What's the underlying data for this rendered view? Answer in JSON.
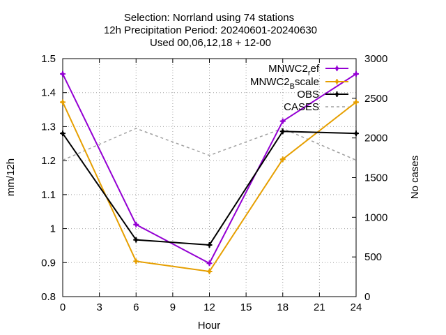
{
  "chart_data": {
    "type": "line",
    "title": [
      "Selection: Norrland using     74 stations",
      "12h Precipitation    Period: 20240601-20240630",
      "Used 00,06,12,18 + 12-00"
    ],
    "xlabel": "Hour",
    "ylabel": "mm/12h",
    "y2label": "No cases",
    "xlim": [
      0,
      24
    ],
    "ylim": [
      0.8,
      1.5
    ],
    "y2lim": [
      0,
      3000
    ],
    "xticks": [
      0,
      3,
      6,
      9,
      12,
      15,
      18,
      21,
      24
    ],
    "yticks": [
      0.8,
      0.9,
      1.0,
      1.1,
      1.2,
      1.3,
      1.4,
      1.5
    ],
    "ytick_labels": [
      "0.8",
      "0.9",
      "1",
      "1.1",
      "1.2",
      "1.3",
      "1.4",
      "1.5"
    ],
    "y2ticks": [
      0,
      500,
      1000,
      1500,
      2000,
      2500,
      3000
    ],
    "grid": true,
    "legend_position": "top-right",
    "x": [
      0,
      6,
      12,
      18,
      24
    ],
    "series": [
      {
        "name": "MNWC2_ref",
        "name_main": "MNWC2",
        "name_sub": "r",
        "name_rest": "ef",
        "color": "#9400d3",
        "marker": true,
        "values": [
          1.455,
          1.012,
          0.898,
          1.316,
          1.455
        ]
      },
      {
        "name": "MNWC2_Bscale",
        "name_main": "MNWC2",
        "name_sub": "B",
        "name_rest": "scale",
        "color": "#e69f00",
        "marker": true,
        "values": [
          1.372,
          0.904,
          0.874,
          1.204,
          1.372
        ]
      },
      {
        "name": "OBS",
        "name_main": "OBS",
        "name_sub": "",
        "name_rest": "",
        "color": "#000000",
        "marker": true,
        "values": [
          1.28,
          0.967,
          0.952,
          1.286,
          1.28
        ]
      },
      {
        "name": "CASES",
        "name_main": "CASES",
        "name_sub": "",
        "name_rest": "",
        "color": "#a0a0a0",
        "marker": false,
        "dashed": true,
        "axis": "y2",
        "values": [
          1720,
          2120,
          1780,
          2120,
          1720
        ]
      }
    ]
  }
}
